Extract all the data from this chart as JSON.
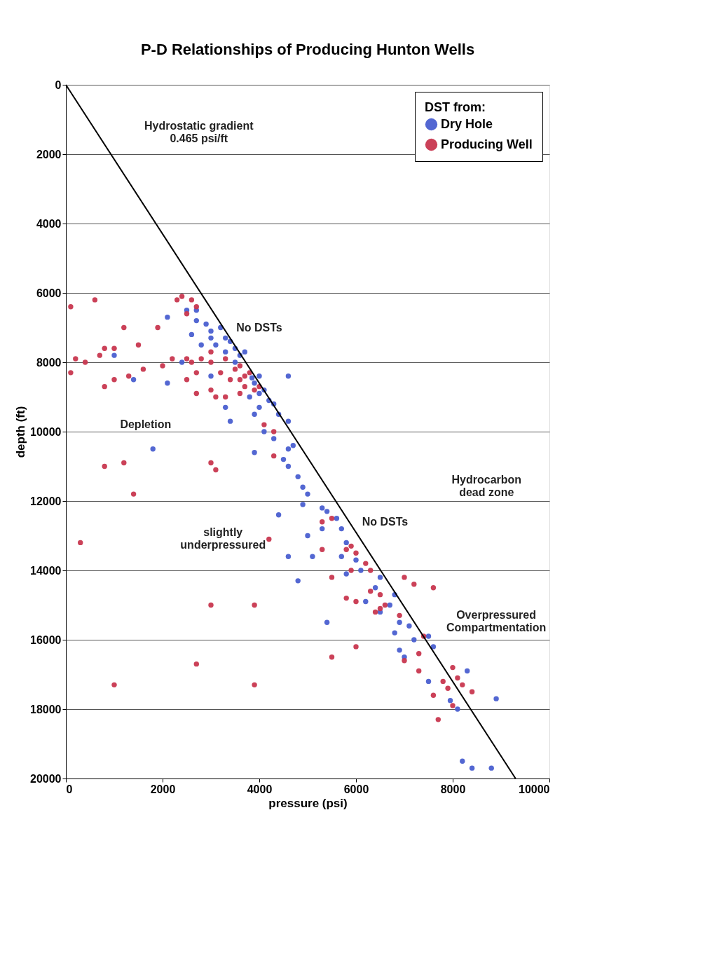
{
  "chart_data": {
    "type": "scatter",
    "title": "P-D Relationships of Producing Hunton Wells",
    "xlabel": "pressure (psi)",
    "ylabel": "depth (ft)",
    "legend_title": "DST from:",
    "xlim": [
      0,
      10000
    ],
    "xticks": [
      0,
      2000,
      4000,
      6000,
      8000,
      10000
    ],
    "ylim": [
      20000,
      0
    ],
    "yticks": [
      0,
      2000,
      4000,
      6000,
      8000,
      10000,
      12000,
      14000,
      16000,
      18000,
      20000
    ],
    "grid": "y",
    "legend": "top right",
    "marker": "circle",
    "series": [
      {
        "name": "Dry Hole",
        "color": "#4a5fd0",
        "x": [
          2700,
          2100,
          2500,
          2700,
          2900,
          3000,
          3200,
          3000,
          3300,
          3500,
          3600,
          3300,
          2600,
          2800,
          3100,
          3400,
          3700,
          3500,
          3850,
          3900,
          4000,
          4200,
          4100,
          3800,
          4000,
          4300,
          4400,
          4600,
          4000,
          4600,
          3000,
          2100,
          1400,
          1000,
          2400,
          3300,
          3900,
          3400,
          4100,
          4300,
          4600,
          4700,
          4500,
          4600,
          3900,
          1800,
          4800,
          4900,
          5000,
          5300,
          5400,
          5600,
          4900,
          4400,
          5300,
          5700,
          5000,
          5800,
          4600,
          5100,
          5700,
          5800,
          4800,
          6000,
          6100,
          6500,
          6400,
          6200,
          6800,
          6500,
          6700,
          5400,
          6900,
          6800,
          7100,
          7200,
          7500,
          6900,
          7000,
          7600,
          8300,
          7500,
          7950,
          8900,
          8100,
          8200,
          8400,
          8800
        ],
        "values": [
          6500,
          6700,
          6500,
          6800,
          6900,
          7100,
          7000,
          7300,
          7300,
          7600,
          7800,
          7700,
          7200,
          7500,
          7500,
          7400,
          7700,
          8000,
          8450,
          8600,
          8900,
          9100,
          8800,
          9000,
          9300,
          9200,
          9500,
          9700,
          8400,
          8400,
          8400,
          8600,
          8500,
          7800,
          8000,
          9300,
          9500,
          9700,
          10000,
          10200,
          10500,
          10400,
          10800,
          11000,
          10600,
          10500,
          11300,
          11600,
          11800,
          12200,
          12300,
          12500,
          12100,
          12400,
          12800,
          12800,
          13000,
          13200,
          13600,
          13600,
          13600,
          14100,
          14300,
          13700,
          14000,
          14200,
          14500,
          14900,
          14700,
          15200,
          15000,
          15500,
          15500,
          15800,
          15600,
          16000,
          15900,
          16300,
          16500,
          16200,
          16900,
          17200,
          17750,
          17700,
          18000,
          19500,
          19700,
          19700
        ]
      },
      {
        "name": "Producing Well",
        "color": "#c8374f",
        "x": [
          100,
          600,
          200,
          400,
          100,
          700,
          800,
          1000,
          1200,
          1500,
          1900,
          1600,
          1300,
          1000,
          800,
          2000,
          2200,
          2500,
          2800,
          3000,
          2700,
          2500,
          2700,
          2600,
          3300,
          3600,
          2300,
          2400,
          2600,
          2700,
          2500,
          3000,
          3100,
          3300,
          3500,
          3600,
          3700,
          3800,
          3900,
          3700,
          3400,
          3200,
          4000,
          3600,
          3000,
          800,
          1200,
          1400,
          300,
          3000,
          3100,
          3000,
          3900,
          2700,
          1000,
          3900,
          4300,
          4100,
          4300,
          5300,
          5500,
          5800,
          5900,
          6000,
          6200,
          5900,
          5500,
          5300,
          4200,
          5800,
          6000,
          6300,
          6500,
          6500,
          6400,
          6300,
          7000,
          6600,
          5500,
          6000,
          6900,
          7200,
          7600,
          7400,
          7000,
          7300,
          7800,
          8000,
          7900,
          8200,
          8400,
          7600,
          8000,
          7300,
          7700,
          8100
        ],
        "values": [
          6400,
          6200,
          7900,
          8000,
          8300,
          7800,
          7600,
          7600,
          7000,
          7500,
          7000,
          8200,
          8400,
          8500,
          8700,
          8100,
          7900,
          7900,
          7900,
          8000,
          8300,
          8500,
          8900,
          8000,
          7900,
          8100,
          6200,
          6100,
          6200,
          6400,
          6600,
          8800,
          9000,
          9000,
          8200,
          8500,
          8700,
          8300,
          8800,
          8400,
          8500,
          8300,
          8700,
          8900,
          7700,
          11000,
          10900,
          11800,
          13200,
          10900,
          11100,
          15000,
          15000,
          16700,
          17300,
          17300,
          10000,
          9800,
          10700,
          12600,
          12500,
          13400,
          13300,
          13500,
          13800,
          14000,
          14200,
          13400,
          13100,
          14800,
          14900,
          14600,
          14700,
          15100,
          15200,
          14000,
          14200,
          15000,
          16500,
          16200,
          15300,
          14400,
          14500,
          15900,
          16600,
          16900,
          17200,
          16800,
          17400,
          17300,
          17500,
          17600,
          17900,
          16400,
          18300,
          17100
        ]
      },
      {
        "type": "line",
        "color": "#000000",
        "marker": "none",
        "x": [
          0,
          9300
        ],
        "values": [
          0,
          20000
        ]
      }
    ],
    "annotations": [
      "Hydrostatic gradient\n0.465 psi/ft",
      "No DSTs",
      "Depletion",
      "slightly\nunderpressured",
      "No DSTs",
      "Hydrocarbon\ndead zone",
      "Overpressured\nCompartmentation"
    ]
  }
}
